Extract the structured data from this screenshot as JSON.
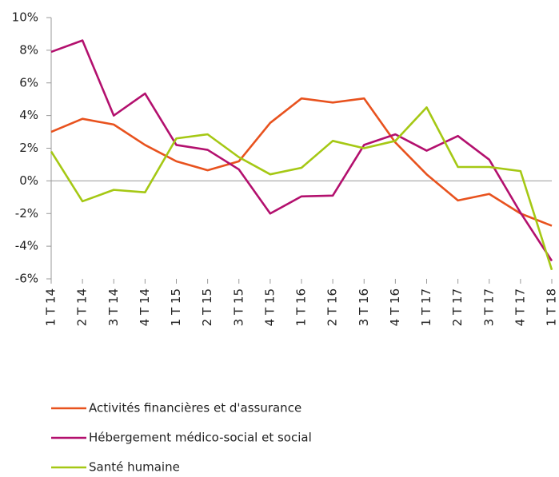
{
  "chart_data": {
    "type": "line",
    "categories": [
      "1 T 14",
      "2 T 14",
      "3 T 14",
      "4 T 14",
      "1 T 15",
      "2 T 15",
      "3 T 15",
      "4 T 15",
      "1 T 16",
      "2 T 16",
      "3 T 16",
      "4 T 16",
      "1 T 17",
      "2 T 17",
      "3 T 17",
      "4 T 17",
      "1 T 18"
    ],
    "series": [
      {
        "name": "Activités financières et d'assurance",
        "color": "#e8521e",
        "values": [
          3.0,
          3.8,
          3.45,
          2.2,
          1.2,
          0.65,
          1.2,
          3.55,
          5.05,
          4.8,
          5.05,
          2.35,
          0.4,
          -1.2,
          -0.8,
          -2.0,
          -2.75
        ]
      },
      {
        "name": "Hébergement médico-social et social",
        "color": "#b3106e",
        "values": [
          7.9,
          8.6,
          4.0,
          5.35,
          2.2,
          1.9,
          0.7,
          -2.0,
          -0.95,
          -0.9,
          2.2,
          2.85,
          1.85,
          2.75,
          1.3,
          -1.95,
          -4.9
        ]
      },
      {
        "name": "Santé humaine",
        "color": "#a5c814",
        "values": [
          1.8,
          -1.25,
          -0.55,
          -0.7,
          2.6,
          2.85,
          1.45,
          0.4,
          0.8,
          2.45,
          2.0,
          2.45,
          4.5,
          0.85,
          0.85,
          0.6,
          -5.45
        ]
      }
    ],
    "ylim": [
      -6,
      10
    ],
    "yticks": [
      {
        "value": -6,
        "label": "-6%"
      },
      {
        "value": -4,
        "label": "-4%"
      },
      {
        "value": -2,
        "label": "-2%"
      },
      {
        "value": 0,
        "label": "0%"
      },
      {
        "value": 2,
        "label": "2%"
      },
      {
        "value": 4,
        "label": "4%"
      },
      {
        "value": 6,
        "label": "6%"
      },
      {
        "value": 8,
        "label": "8%"
      },
      {
        "value": 10,
        "label": "10%"
      }
    ],
    "legend": "bottom"
  }
}
